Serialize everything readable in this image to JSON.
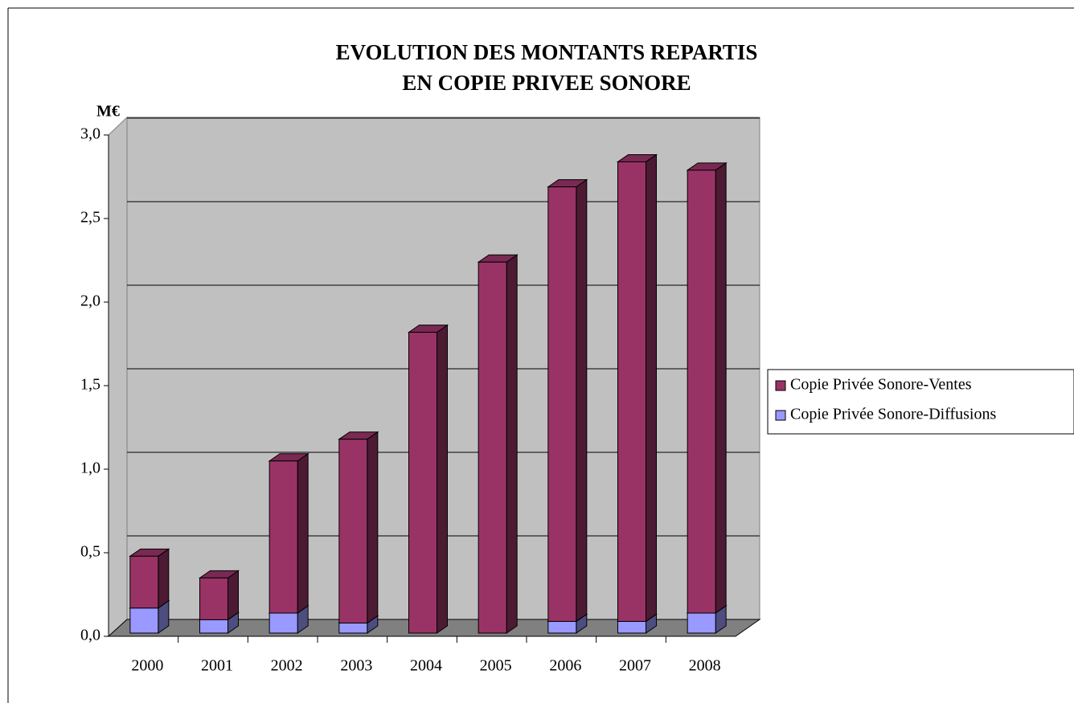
{
  "chart_data": {
    "type": "bar3d-stacked",
    "title": [
      "EVOLUTION DES MONTANTS REPARTIS",
      "EN COPIE PRIVEE SONORE"
    ],
    "y_label": "M€",
    "categories": [
      "2000",
      "2001",
      "2002",
      "2003",
      "2004",
      "2005",
      "2006",
      "2007",
      "2008"
    ],
    "series": [
      {
        "name": "Copie Privée Sonore-Diffusions",
        "color": "#9999ff",
        "side": "#4d4d80",
        "top": "#7a7acc",
        "values": [
          0.15,
          0.08,
          0.12,
          0.06,
          0,
          0,
          0.07,
          0.07,
          0.12
        ]
      },
      {
        "name": "Copie Privée Sonore-Ventes",
        "color": "#993366",
        "side": "#4d1a33",
        "top": "#7a2952",
        "values": [
          0.31,
          0.25,
          0.91,
          1.1,
          1.8,
          2.22,
          2.6,
          2.75,
          2.65
        ]
      }
    ],
    "ylim": [
      0,
      3
    ],
    "yticks": [
      {
        "value": 0,
        "label": "0,0"
      },
      {
        "value": 0.5,
        "label": "0,5"
      },
      {
        "value": 1,
        "label": "1,0"
      },
      {
        "value": 1.5,
        "label": "1,5"
      },
      {
        "value": 2,
        "label": "2,0"
      },
      {
        "value": 2.5,
        "label": "2,5"
      },
      {
        "value": 3,
        "label": "3,0"
      }
    ],
    "grid": true,
    "legend": "right"
  }
}
